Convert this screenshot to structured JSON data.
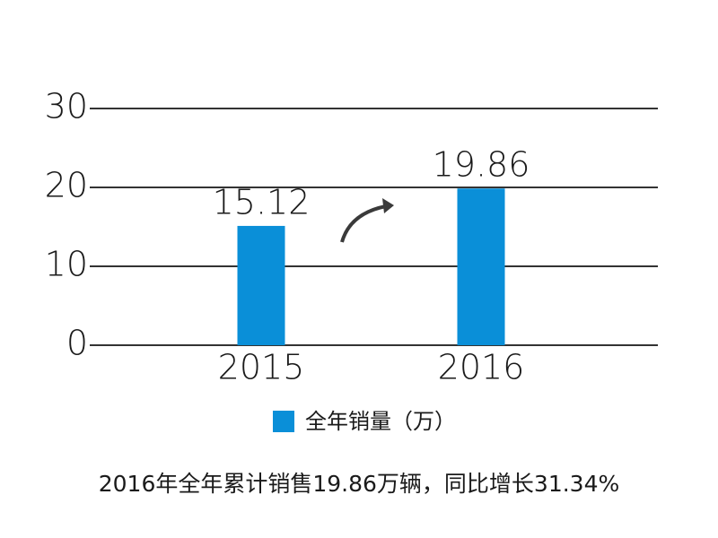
{
  "chart_data": {
    "type": "bar",
    "categories": [
      "2015",
      "2016"
    ],
    "series": [
      {
        "name": "全年销量（万）",
        "color": "#0a8fd8",
        "values": [
          15.12,
          19.86
        ]
      }
    ],
    "ylim": [
      0,
      30
    ],
    "yticks": [
      0,
      10,
      20,
      30
    ],
    "grid": true,
    "legend": "bottom",
    "caption": "2016年全年累计销售19.86万辆，同比增长31.34%"
  }
}
